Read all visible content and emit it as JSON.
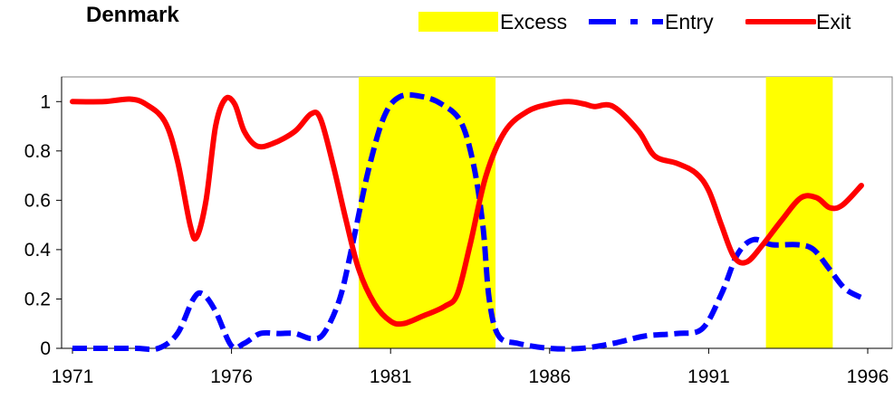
{
  "chart_data": {
    "type": "line",
    "title": "Denmark",
    "xlabel": "",
    "ylabel": "",
    "xlim": [
      1971,
      1996
    ],
    "ylim": [
      0,
      1.1
    ],
    "x_ticks": [
      "1971",
      "1976",
      "1981",
      "1986",
      "1991",
      "1996"
    ],
    "y_ticks": [
      "0",
      "0.2",
      "0.4",
      "0.6",
      "0.8",
      "1"
    ],
    "legend": {
      "placement": "top",
      "entries": [
        "Excess",
        "Entry",
        "Exit"
      ]
    },
    "excess_periods": [
      [
        1980.0,
        1984.3
      ],
      [
        1992.8,
        1994.9
      ]
    ],
    "series": [
      {
        "name": "Entry",
        "style": "dashed",
        "color": "#0000ff",
        "points": [
          [
            1971.0,
            0.0
          ],
          [
            1972.0,
            0.0
          ],
          [
            1973.0,
            0.0
          ],
          [
            1973.7,
            0.0
          ],
          [
            1974.3,
            0.06
          ],
          [
            1974.8,
            0.2
          ],
          [
            1975.1,
            0.22
          ],
          [
            1975.5,
            0.15
          ],
          [
            1976.0,
            0.01
          ],
          [
            1976.4,
            0.02
          ],
          [
            1976.9,
            0.06
          ],
          [
            1977.5,
            0.06
          ],
          [
            1978.0,
            0.06
          ],
          [
            1978.5,
            0.04
          ],
          [
            1978.9,
            0.06
          ],
          [
            1979.4,
            0.2
          ],
          [
            1979.8,
            0.42
          ],
          [
            1980.3,
            0.72
          ],
          [
            1980.8,
            0.94
          ],
          [
            1981.3,
            1.02
          ],
          [
            1982.0,
            1.02
          ],
          [
            1982.6,
            0.99
          ],
          [
            1983.2,
            0.92
          ],
          [
            1983.6,
            0.75
          ],
          [
            1983.9,
            0.5
          ],
          [
            1984.1,
            0.2
          ],
          [
            1984.4,
            0.05
          ],
          [
            1985.0,
            0.02
          ],
          [
            1986.0,
            0.0
          ],
          [
            1987.0,
            0.0
          ],
          [
            1988.0,
            0.02
          ],
          [
            1989.0,
            0.05
          ],
          [
            1990.0,
            0.06
          ],
          [
            1990.8,
            0.08
          ],
          [
            1991.4,
            0.22
          ],
          [
            1991.9,
            0.38
          ],
          [
            1992.4,
            0.44
          ],
          [
            1993.0,
            0.42
          ],
          [
            1993.8,
            0.42
          ],
          [
            1994.3,
            0.4
          ],
          [
            1994.8,
            0.32
          ],
          [
            1995.3,
            0.24
          ],
          [
            1995.9,
            0.2
          ]
        ]
      },
      {
        "name": "Exit",
        "style": "solid",
        "color": "#ff0000",
        "points": [
          [
            1971.0,
            1.0
          ],
          [
            1972.0,
            1.0
          ],
          [
            1972.8,
            1.01
          ],
          [
            1973.3,
            0.99
          ],
          [
            1973.9,
            0.92
          ],
          [
            1974.3,
            0.76
          ],
          [
            1974.7,
            0.5
          ],
          [
            1974.9,
            0.45
          ],
          [
            1975.2,
            0.6
          ],
          [
            1975.5,
            0.9
          ],
          [
            1975.8,
            1.01
          ],
          [
            1976.1,
            0.99
          ],
          [
            1976.4,
            0.88
          ],
          [
            1976.8,
            0.82
          ],
          [
            1977.3,
            0.83
          ],
          [
            1978.0,
            0.88
          ],
          [
            1978.5,
            0.95
          ],
          [
            1978.8,
            0.93
          ],
          [
            1979.2,
            0.74
          ],
          [
            1979.6,
            0.52
          ],
          [
            1980.0,
            0.32
          ],
          [
            1980.5,
            0.18
          ],
          [
            1981.0,
            0.11
          ],
          [
            1981.4,
            0.1
          ],
          [
            1982.0,
            0.13
          ],
          [
            1982.7,
            0.17
          ],
          [
            1983.1,
            0.22
          ],
          [
            1983.5,
            0.42
          ],
          [
            1984.0,
            0.7
          ],
          [
            1984.6,
            0.88
          ],
          [
            1985.3,
            0.96
          ],
          [
            1986.0,
            0.99
          ],
          [
            1986.6,
            1.0
          ],
          [
            1987.1,
            0.99
          ],
          [
            1987.4,
            0.98
          ],
          [
            1988.0,
            0.98
          ],
          [
            1988.8,
            0.88
          ],
          [
            1989.3,
            0.78
          ],
          [
            1990.0,
            0.75
          ],
          [
            1990.6,
            0.71
          ],
          [
            1991.0,
            0.64
          ],
          [
            1991.4,
            0.5
          ],
          [
            1991.8,
            0.37
          ],
          [
            1992.2,
            0.35
          ],
          [
            1992.7,
            0.42
          ],
          [
            1993.3,
            0.52
          ],
          [
            1993.9,
            0.61
          ],
          [
            1994.4,
            0.61
          ],
          [
            1994.8,
            0.57
          ],
          [
            1995.2,
            0.58
          ],
          [
            1995.8,
            0.66
          ]
        ]
      }
    ]
  }
}
